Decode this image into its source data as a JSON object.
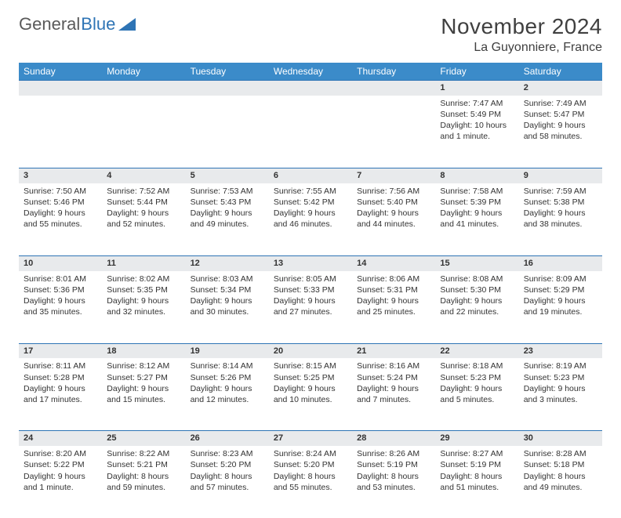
{
  "logo": {
    "text1": "General",
    "text2": "Blue"
  },
  "title": "November 2024",
  "location": "La Guyonniere, France",
  "colors": {
    "header_bg": "#3b8bc9",
    "header_text": "#ffffff",
    "daynum_bg": "#e8eaec",
    "rule": "#2e74b5",
    "logo_gray": "#5a5a5a",
    "logo_blue": "#2e74b5"
  },
  "weekdays": [
    "Sunday",
    "Monday",
    "Tuesday",
    "Wednesday",
    "Thursday",
    "Friday",
    "Saturday"
  ],
  "weeks": [
    [
      null,
      null,
      null,
      null,
      null,
      {
        "n": "1",
        "sr": "Sunrise: 7:47 AM",
        "ss": "Sunset: 5:49 PM",
        "d1": "Daylight: 10 hours",
        "d2": "and 1 minute."
      },
      {
        "n": "2",
        "sr": "Sunrise: 7:49 AM",
        "ss": "Sunset: 5:47 PM",
        "d1": "Daylight: 9 hours",
        "d2": "and 58 minutes."
      }
    ],
    [
      {
        "n": "3",
        "sr": "Sunrise: 7:50 AM",
        "ss": "Sunset: 5:46 PM",
        "d1": "Daylight: 9 hours",
        "d2": "and 55 minutes."
      },
      {
        "n": "4",
        "sr": "Sunrise: 7:52 AM",
        "ss": "Sunset: 5:44 PM",
        "d1": "Daylight: 9 hours",
        "d2": "and 52 minutes."
      },
      {
        "n": "5",
        "sr": "Sunrise: 7:53 AM",
        "ss": "Sunset: 5:43 PM",
        "d1": "Daylight: 9 hours",
        "d2": "and 49 minutes."
      },
      {
        "n": "6",
        "sr": "Sunrise: 7:55 AM",
        "ss": "Sunset: 5:42 PM",
        "d1": "Daylight: 9 hours",
        "d2": "and 46 minutes."
      },
      {
        "n": "7",
        "sr": "Sunrise: 7:56 AM",
        "ss": "Sunset: 5:40 PM",
        "d1": "Daylight: 9 hours",
        "d2": "and 44 minutes."
      },
      {
        "n": "8",
        "sr": "Sunrise: 7:58 AM",
        "ss": "Sunset: 5:39 PM",
        "d1": "Daylight: 9 hours",
        "d2": "and 41 minutes."
      },
      {
        "n": "9",
        "sr": "Sunrise: 7:59 AM",
        "ss": "Sunset: 5:38 PM",
        "d1": "Daylight: 9 hours",
        "d2": "and 38 minutes."
      }
    ],
    [
      {
        "n": "10",
        "sr": "Sunrise: 8:01 AM",
        "ss": "Sunset: 5:36 PM",
        "d1": "Daylight: 9 hours",
        "d2": "and 35 minutes."
      },
      {
        "n": "11",
        "sr": "Sunrise: 8:02 AM",
        "ss": "Sunset: 5:35 PM",
        "d1": "Daylight: 9 hours",
        "d2": "and 32 minutes."
      },
      {
        "n": "12",
        "sr": "Sunrise: 8:03 AM",
        "ss": "Sunset: 5:34 PM",
        "d1": "Daylight: 9 hours",
        "d2": "and 30 minutes."
      },
      {
        "n": "13",
        "sr": "Sunrise: 8:05 AM",
        "ss": "Sunset: 5:33 PM",
        "d1": "Daylight: 9 hours",
        "d2": "and 27 minutes."
      },
      {
        "n": "14",
        "sr": "Sunrise: 8:06 AM",
        "ss": "Sunset: 5:31 PM",
        "d1": "Daylight: 9 hours",
        "d2": "and 25 minutes."
      },
      {
        "n": "15",
        "sr": "Sunrise: 8:08 AM",
        "ss": "Sunset: 5:30 PM",
        "d1": "Daylight: 9 hours",
        "d2": "and 22 minutes."
      },
      {
        "n": "16",
        "sr": "Sunrise: 8:09 AM",
        "ss": "Sunset: 5:29 PM",
        "d1": "Daylight: 9 hours",
        "d2": "and 19 minutes."
      }
    ],
    [
      {
        "n": "17",
        "sr": "Sunrise: 8:11 AM",
        "ss": "Sunset: 5:28 PM",
        "d1": "Daylight: 9 hours",
        "d2": "and 17 minutes."
      },
      {
        "n": "18",
        "sr": "Sunrise: 8:12 AM",
        "ss": "Sunset: 5:27 PM",
        "d1": "Daylight: 9 hours",
        "d2": "and 15 minutes."
      },
      {
        "n": "19",
        "sr": "Sunrise: 8:14 AM",
        "ss": "Sunset: 5:26 PM",
        "d1": "Daylight: 9 hours",
        "d2": "and 12 minutes."
      },
      {
        "n": "20",
        "sr": "Sunrise: 8:15 AM",
        "ss": "Sunset: 5:25 PM",
        "d1": "Daylight: 9 hours",
        "d2": "and 10 minutes."
      },
      {
        "n": "21",
        "sr": "Sunrise: 8:16 AM",
        "ss": "Sunset: 5:24 PM",
        "d1": "Daylight: 9 hours",
        "d2": "and 7 minutes."
      },
      {
        "n": "22",
        "sr": "Sunrise: 8:18 AM",
        "ss": "Sunset: 5:23 PM",
        "d1": "Daylight: 9 hours",
        "d2": "and 5 minutes."
      },
      {
        "n": "23",
        "sr": "Sunrise: 8:19 AM",
        "ss": "Sunset: 5:23 PM",
        "d1": "Daylight: 9 hours",
        "d2": "and 3 minutes."
      }
    ],
    [
      {
        "n": "24",
        "sr": "Sunrise: 8:20 AM",
        "ss": "Sunset: 5:22 PM",
        "d1": "Daylight: 9 hours",
        "d2": "and 1 minute."
      },
      {
        "n": "25",
        "sr": "Sunrise: 8:22 AM",
        "ss": "Sunset: 5:21 PM",
        "d1": "Daylight: 8 hours",
        "d2": "and 59 minutes."
      },
      {
        "n": "26",
        "sr": "Sunrise: 8:23 AM",
        "ss": "Sunset: 5:20 PM",
        "d1": "Daylight: 8 hours",
        "d2": "and 57 minutes."
      },
      {
        "n": "27",
        "sr": "Sunrise: 8:24 AM",
        "ss": "Sunset: 5:20 PM",
        "d1": "Daylight: 8 hours",
        "d2": "and 55 minutes."
      },
      {
        "n": "28",
        "sr": "Sunrise: 8:26 AM",
        "ss": "Sunset: 5:19 PM",
        "d1": "Daylight: 8 hours",
        "d2": "and 53 minutes."
      },
      {
        "n": "29",
        "sr": "Sunrise: 8:27 AM",
        "ss": "Sunset: 5:19 PM",
        "d1": "Daylight: 8 hours",
        "d2": "and 51 minutes."
      },
      {
        "n": "30",
        "sr": "Sunrise: 8:28 AM",
        "ss": "Sunset: 5:18 PM",
        "d1": "Daylight: 8 hours",
        "d2": "and 49 minutes."
      }
    ]
  ]
}
